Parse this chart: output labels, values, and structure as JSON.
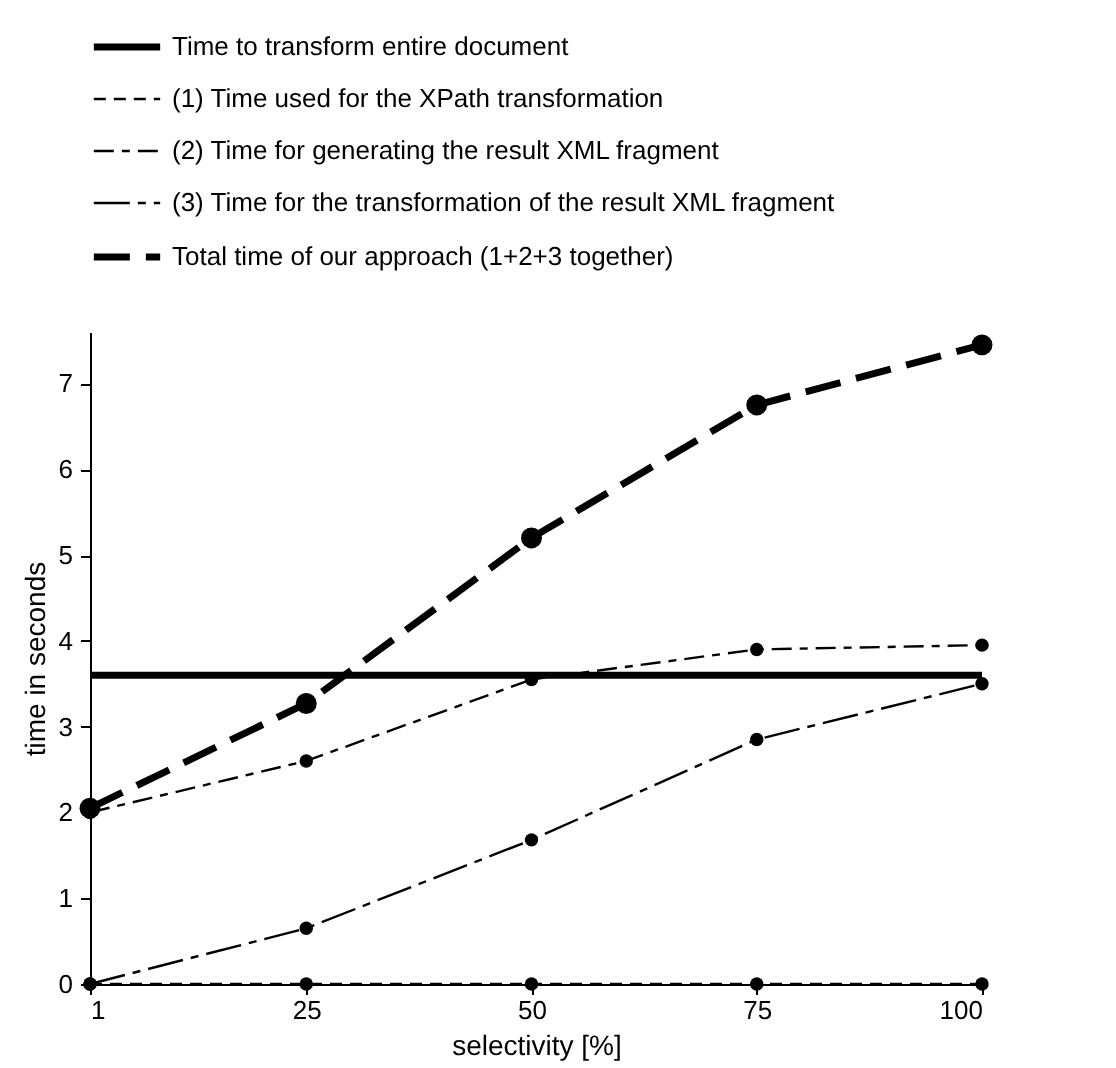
{
  "chart_data": {
    "type": "line",
    "xlabel": "selectivity [%]",
    "ylabel": "time in seconds",
    "x": [
      1,
      25,
      50,
      75,
      100
    ],
    "xlim": [
      1,
      100
    ],
    "xticks": [
      1,
      25,
      50,
      75,
      100
    ],
    "ylim": [
      0,
      7.6
    ],
    "yticks": [
      0,
      1,
      2,
      3,
      4,
      5,
      6,
      7
    ],
    "grid": false,
    "legend": "top",
    "series": [
      {
        "name": "Time to transform entire document",
        "color": "#000000",
        "line_style": "solid",
        "marker": "none",
        "values": [
          3.6,
          3.6,
          3.6,
          3.6,
          3.6
        ]
      },
      {
        "name": "(1) Time used for the XPath transformation",
        "color": "#000000",
        "line_style": "dashed",
        "marker": "circle",
        "values": [
          0,
          0,
          0,
          0,
          0
        ]
      },
      {
        "name": "(2) Time for generating the result XML fragment",
        "color": "#000000",
        "line_style": "dashed",
        "marker": "circle",
        "values": [
          2.0,
          2.6,
          3.55,
          3.9,
          3.95
        ]
      },
      {
        "name": "(3) Time for the transformation of the result XML fragment",
        "color": "#000000",
        "line_style": "dashed",
        "marker": "circle",
        "values": [
          0,
          0.65,
          1.68,
          2.85,
          3.5
        ]
      },
      {
        "name": "Total time of our approach (1+2+3 together)",
        "color": "#000000",
        "line_style": "dashed",
        "marker": "circle",
        "values": [
          2.05,
          3.27,
          5.2,
          6.75,
          7.45
        ]
      }
    ]
  }
}
